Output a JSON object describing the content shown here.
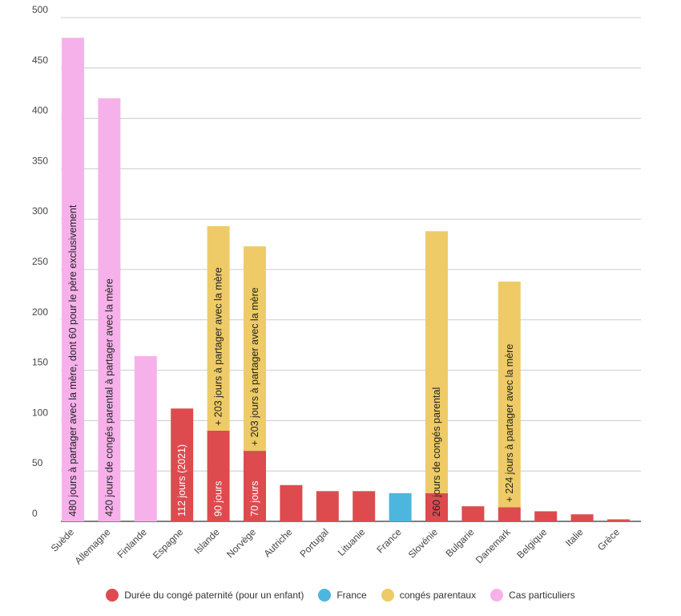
{
  "chart_data": {
    "type": "bar",
    "title": "",
    "xlabel": "",
    "ylabel": "",
    "ylim": [
      0,
      500
    ],
    "yticks": [
      0,
      50,
      100,
      150,
      200,
      250,
      300,
      350,
      400,
      450,
      500
    ],
    "grid": true,
    "legend_position": "bottom",
    "categories": [
      "Suède",
      "Allemagne",
      "Finlande",
      "Espagne",
      "Islande",
      "Norvège",
      "Autriche",
      "Portugal",
      "Lituanie",
      "France",
      "Slovénie",
      "Bulgarie",
      "Danemark",
      "Belgique",
      "Italie",
      "Grèce"
    ],
    "series": [
      {
        "name": "Durée du congé paternité (pour un enfant)",
        "color": "#dd4b4f",
        "values": [
          0,
          0,
          0,
          112,
          90,
          70,
          36,
          30,
          30,
          0,
          28,
          15,
          14,
          10,
          7,
          2
        ]
      },
      {
        "name": "France",
        "color": "#4db6de",
        "values": [
          0,
          0,
          0,
          0,
          0,
          0,
          0,
          0,
          0,
          28,
          0,
          0,
          0,
          0,
          0,
          0
        ]
      },
      {
        "name": "congés parentaux",
        "color": "#eecb67",
        "values": [
          0,
          0,
          0,
          0,
          203,
          203,
          0,
          0,
          0,
          0,
          260,
          0,
          224,
          0,
          0,
          0
        ]
      },
      {
        "name": "Cas particuliers",
        "color": "#f7b1ea",
        "values": [
          480,
          420,
          164,
          0,
          0,
          0,
          0,
          0,
          0,
          0,
          0,
          0,
          0,
          0,
          0,
          0
        ]
      }
    ],
    "annotations": [
      {
        "category": "Suède",
        "text": "480 jours à partager avec la mère, dont 60 pour le père exclusivement",
        "color": "#222222"
      },
      {
        "category": "Allemagne",
        "text": "420 jours de congés parental à partager avec la mère",
        "color": "#222222"
      },
      {
        "category": "Espagne",
        "text": "112 jours (2021)",
        "color": "#ffffff"
      },
      {
        "category": "Islande",
        "text": "90 jours",
        "color": "#ffffff"
      },
      {
        "category": "Islande",
        "text": "+ 203 jours à partager avec la mère",
        "color": "#222222"
      },
      {
        "category": "Norvège",
        "text": "70 jours",
        "color": "#ffffff"
      },
      {
        "category": "Norvège",
        "text": "+ 203 jours à partager avec la mère",
        "color": "#222222"
      },
      {
        "category": "Slovénie",
        "text": "260 jours de congés parental",
        "color": "#222222"
      },
      {
        "category": "Danemark",
        "text": "+ 224 jours à partager avec la mère",
        "color": "#222222"
      }
    ]
  }
}
